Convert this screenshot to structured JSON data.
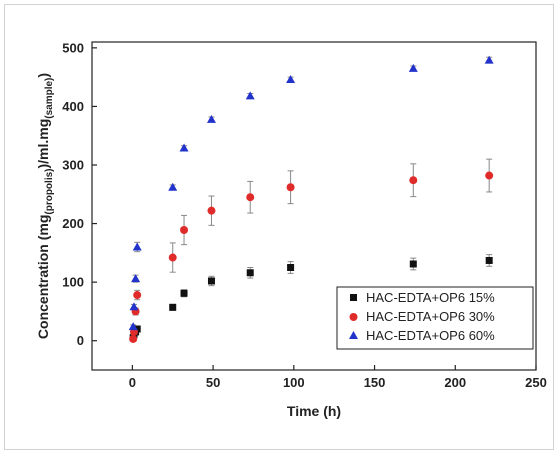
{
  "chart_data": {
    "type": "scatter",
    "xlabel": "Time (h)",
    "ylabel": {
      "prefix": "Concentration (mg",
      "sub1": "(propolis)",
      "mid": ")/ml.mg",
      "sub2": "(sample)",
      "suffix": ")"
    },
    "xlim": [
      -25,
      250
    ],
    "ylim": [
      -50,
      510
    ],
    "xticks": [
      0,
      50,
      100,
      150,
      200,
      250
    ],
    "yticks": [
      0,
      100,
      200,
      300,
      400,
      500
    ],
    "legend_position": "bottom-right",
    "grid": false,
    "series": [
      {
        "name": "HAC-EDTA+OP6 15%",
        "marker": "square",
        "color": "#111111",
        "points": [
          {
            "x": 0.5,
            "y": 5,
            "err": 3
          },
          {
            "x": 1,
            "y": 10,
            "err": 3
          },
          {
            "x": 2,
            "y": 15,
            "err": 3
          },
          {
            "x": 3,
            "y": 20,
            "err": 4
          },
          {
            "x": 25,
            "y": 57,
            "err": 5
          },
          {
            "x": 32,
            "y": 81,
            "err": 6
          },
          {
            "x": 49,
            "y": 102,
            "err": 8
          },
          {
            "x": 73,
            "y": 116,
            "err": 9
          },
          {
            "x": 98,
            "y": 125,
            "err": 10
          },
          {
            "x": 174,
            "y": 131,
            "err": 10
          },
          {
            "x": 221,
            "y": 137,
            "err": 10
          }
        ]
      },
      {
        "name": "HAC-EDTA+OP6 30%",
        "marker": "circle",
        "color": "#e02b2b",
        "points": [
          {
            "x": 0.5,
            "y": 3,
            "err": 3
          },
          {
            "x": 1,
            "y": 15,
            "err": 4
          },
          {
            "x": 2,
            "y": 50,
            "err": 6
          },
          {
            "x": 3,
            "y": 78,
            "err": 8
          },
          {
            "x": 25,
            "y": 142,
            "err": 25
          },
          {
            "x": 32,
            "y": 189,
            "err": 25
          },
          {
            "x": 49,
            "y": 222,
            "err": 25
          },
          {
            "x": 73,
            "y": 245,
            "err": 27
          },
          {
            "x": 98,
            "y": 262,
            "err": 28
          },
          {
            "x": 174,
            "y": 274,
            "err": 28
          },
          {
            "x": 221,
            "y": 282,
            "err": 28
          }
        ]
      },
      {
        "name": "HAC-EDTA+OP6 60%",
        "marker": "triangle",
        "color": "#2233cc",
        "points": [
          {
            "x": 0.5,
            "y": 24,
            "err": 3
          },
          {
            "x": 1,
            "y": 58,
            "err": 4
          },
          {
            "x": 2,
            "y": 106,
            "err": 6
          },
          {
            "x": 3,
            "y": 160,
            "err": 8
          },
          {
            "x": 25,
            "y": 262,
            "err": 4
          },
          {
            "x": 32,
            "y": 329,
            "err": 4
          },
          {
            "x": 49,
            "y": 378,
            "err": 4
          },
          {
            "x": 73,
            "y": 418,
            "err": 4
          },
          {
            "x": 98,
            "y": 446,
            "err": 4
          },
          {
            "x": 174,
            "y": 465,
            "err": 4
          },
          {
            "x": 221,
            "y": 479,
            "err": 5
          }
        ]
      }
    ]
  }
}
